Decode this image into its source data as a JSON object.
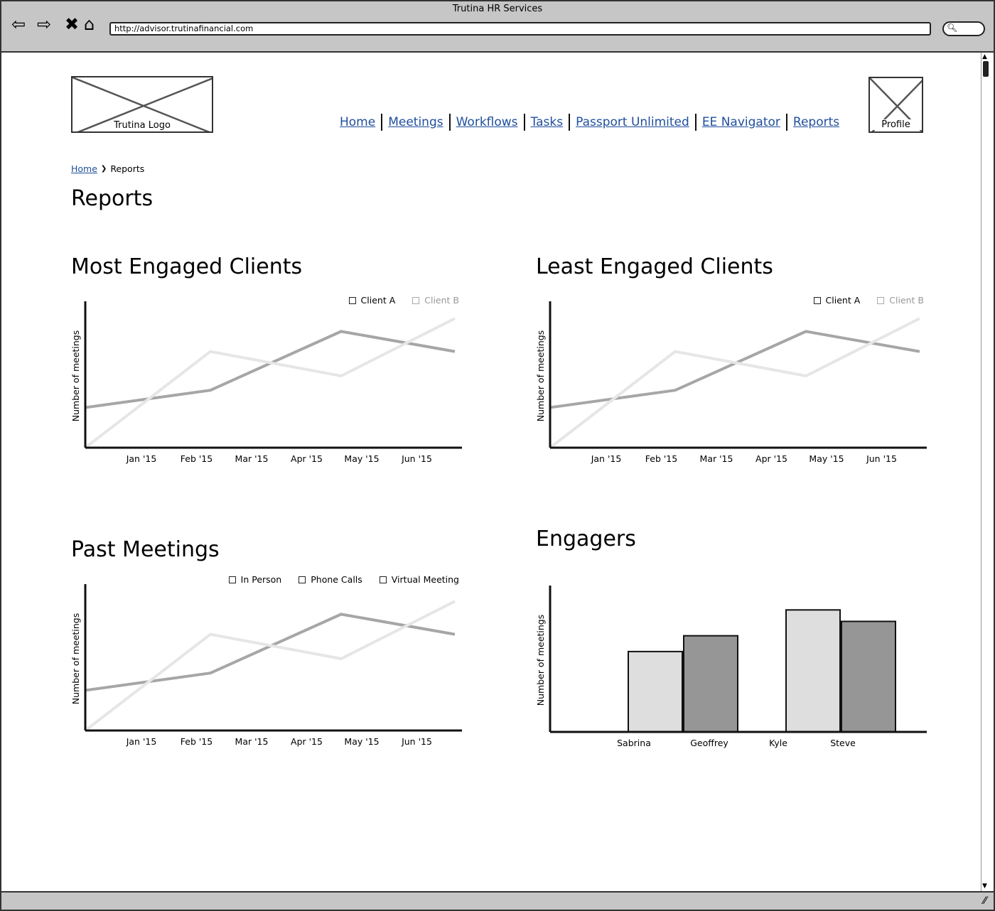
{
  "window": {
    "title": "Trutina HR Services",
    "url": "http://advisor.trutinafinancial.com"
  },
  "header": {
    "logo_label": "Trutina Logo",
    "profile_label": "Profile",
    "nav": [
      "Home",
      "Meetings",
      "Workflows",
      "Tasks",
      "Passport Unlimited",
      "EE Navigator",
      "Reports"
    ]
  },
  "breadcrumb": {
    "home": "Home",
    "separator": "❯",
    "current": "Reports"
  },
  "page": {
    "title": "Reports"
  },
  "sections": {
    "most_engaged": {
      "title": "Most Engaged Clients",
      "legend": [
        "Client A",
        "Client B"
      ]
    },
    "least_engaged": {
      "title": "Least Engaged Clients",
      "legend": [
        "Client A",
        "Client B"
      ]
    },
    "past_meetings": {
      "title": "Past Meetings",
      "legend": [
        "In Person",
        "Phone Calls",
        "Virtual Meeting"
      ]
    },
    "engagers": {
      "title": "Engagers"
    }
  },
  "colors": {
    "series_dark": "#a6a6a6",
    "series_light": "#e6e6e6",
    "bar_light": "#dedede",
    "bar_dark": "#969696",
    "link": "#1f4e9c"
  },
  "chart_data": [
    {
      "id": "most_engaged",
      "type": "line",
      "ylabel": "Number of meetings",
      "categories": [
        "Jan '15",
        "Feb '15",
        "Mar '15",
        "Apr '15",
        "May '15",
        "Jun '15"
      ],
      "ylim": [
        0,
        10
      ],
      "series": [
        {
          "name": "Client A",
          "x": [
            0,
            2.2,
            4.5,
            6.5
          ],
          "values": [
            2.8,
            4.0,
            8.1,
            6.7
          ]
        },
        {
          "name": "Client B",
          "x": [
            0,
            2.2,
            4.5,
            6.5
          ],
          "values": [
            0.0,
            6.7,
            5.0,
            9.0
          ]
        }
      ]
    },
    {
      "id": "least_engaged",
      "type": "line",
      "ylabel": "Number of meetings",
      "categories": [
        "Jan '15",
        "Feb '15",
        "Mar '15",
        "Apr '15",
        "May '15",
        "Jun '15"
      ],
      "ylim": [
        0,
        10
      ],
      "series": [
        {
          "name": "Client A",
          "x": [
            0,
            2.2,
            4.5,
            6.5
          ],
          "values": [
            2.8,
            4.0,
            8.1,
            6.7
          ]
        },
        {
          "name": "Client B",
          "x": [
            0,
            2.2,
            4.5,
            6.5
          ],
          "values": [
            0.0,
            6.7,
            5.0,
            9.0
          ]
        }
      ]
    },
    {
      "id": "past_meetings",
      "type": "line",
      "ylabel": "Number of meetings",
      "categories": [
        "Jan '15",
        "Feb '15",
        "Mar '15",
        "Apr '15",
        "May '15",
        "Jun '15"
      ],
      "ylim": [
        0,
        10
      ],
      "series": [
        {
          "x": [
            0,
            2.2,
            4.5,
            6.5
          ],
          "values": [
            2.8,
            4.0,
            8.1,
            6.7
          ]
        },
        {
          "x": [
            0,
            2.2,
            4.5,
            6.5
          ],
          "values": [
            0.0,
            6.7,
            5.0,
            9.0
          ]
        }
      ]
    },
    {
      "id": "engagers",
      "type": "bar",
      "ylabel": "Number of meetings",
      "categories": [
        "Sabrina",
        "Geoffrey",
        "Kyle",
        "Steve"
      ],
      "values": [
        5.6,
        6.7,
        8.5,
        7.7
      ],
      "ylim": [
        0,
        10
      ]
    }
  ]
}
